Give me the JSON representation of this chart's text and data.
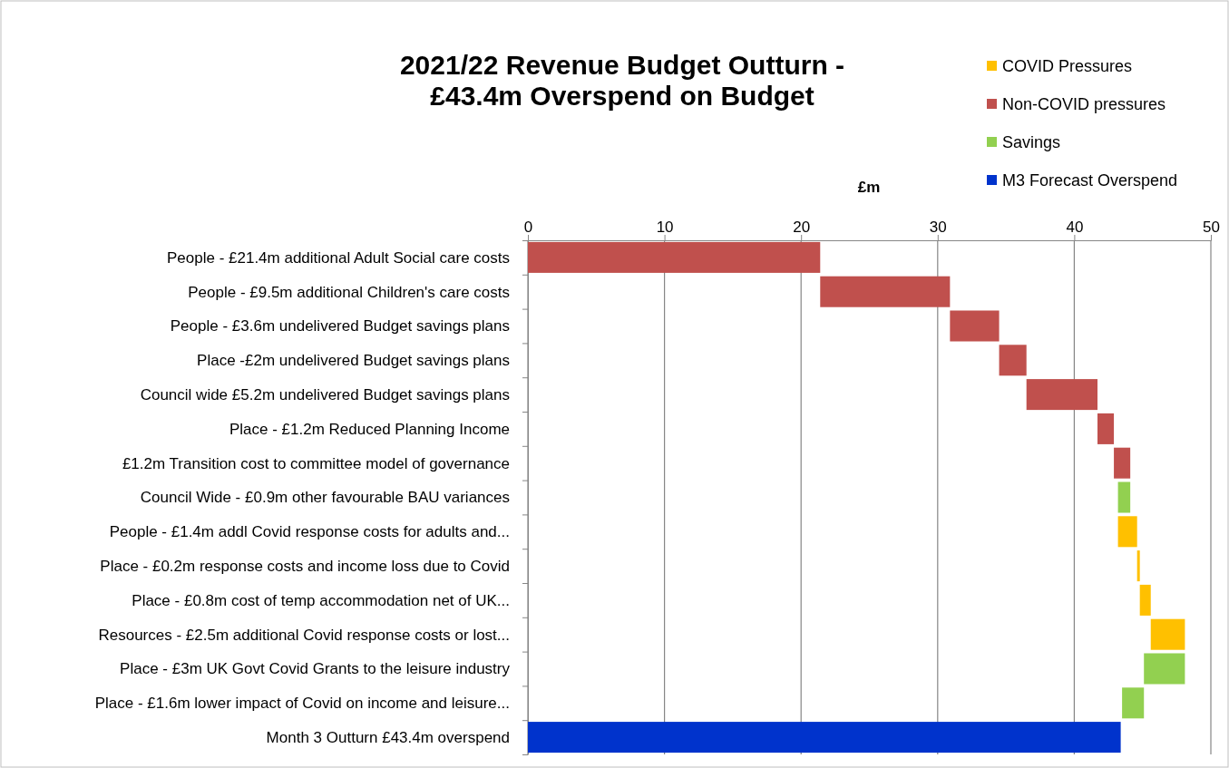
{
  "chart_data": {
    "type": "bar",
    "orientation": "horizontal",
    "title": "2021/22 Revenue Budget Outturn - £43.4m Overspend on Budget",
    "xlabel": "£m",
    "categories": [
      "People - £21.4m additional Adult Social care costs",
      "People - £9.5m additional Children's care costs",
      "People - £3.6m undelivered Budget savings plans ",
      "Place -£2m undelivered Budget savings plans",
      "Council wide £5.2m undelivered Budget savings plans ",
      "Place - £1.2m Reduced Planning Income",
      "£1.2m Transition cost to committee model of governance",
      "Council Wide - £0.9m other favourable BAU variances",
      "People - £1.4m addl Covid response costs for adults and...",
      "Place - £0.2m response costs and income loss due to Covid ",
      "Place - £0.8m cost of  temp accommodation net of UK...",
      "Resources - £2.5m additional Covid response costs or lost...",
      "Place - £3m UK Govt Covid Grants to the  leisure industry ",
      "Place - £1.6m lower impact of Covid on income and leisure...",
      "Month 3 Outturn £43.4m overspend"
    ],
    "series": [
      {
        "name": "COVID Pressures",
        "color": "#ffc000",
        "base": [
          null,
          null,
          null,
          null,
          null,
          null,
          null,
          null,
          43.2,
          44.6,
          44.8,
          45.6,
          null,
          null,
          null
        ],
        "values": [
          null,
          null,
          null,
          null,
          null,
          null,
          null,
          null,
          1.4,
          0.2,
          0.8,
          2.5,
          null,
          null,
          null
        ]
      },
      {
        "name": "Non-COVID pressures",
        "color": "#c0504d",
        "base": [
          0,
          21.4,
          30.9,
          34.5,
          36.5,
          41.7,
          42.9,
          null,
          null,
          null,
          null,
          null,
          null,
          null,
          null
        ],
        "values": [
          21.4,
          9.5,
          3.6,
          2,
          5.2,
          1.2,
          1.2,
          null,
          null,
          null,
          null,
          null,
          null,
          null,
          null
        ]
      },
      {
        "name": "Savings",
        "color": "#92d050",
        "base": [
          null,
          null,
          null,
          null,
          null,
          null,
          null,
          44.1,
          null,
          null,
          null,
          null,
          48.1,
          45.1,
          null
        ],
        "values": [
          null,
          null,
          null,
          null,
          null,
          null,
          null,
          -0.9,
          null,
          null,
          null,
          null,
          -3,
          -1.6,
          null
        ]
      },
      {
        "name": "M3 Forecast Overspend",
        "color": "#0033cc",
        "base": [
          null,
          null,
          null,
          null,
          null,
          null,
          null,
          null,
          null,
          null,
          null,
          null,
          null,
          null,
          0
        ],
        "values": [
          null,
          null,
          null,
          null,
          null,
          null,
          null,
          null,
          null,
          null,
          null,
          null,
          null,
          null,
          43.4
        ]
      }
    ],
    "xlim": [
      0,
      50
    ],
    "xticks": [
      0,
      10,
      20,
      30,
      40,
      50
    ],
    "grid": "x",
    "legend": "top right"
  }
}
